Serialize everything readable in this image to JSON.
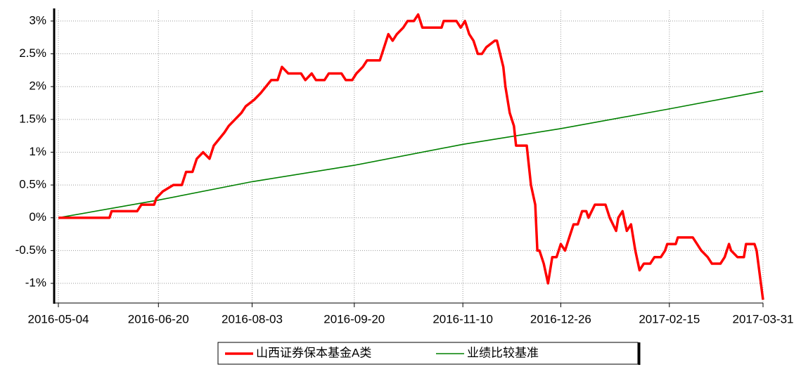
{
  "chart_data": {
    "type": "line",
    "xlim": [
      "2016-05-04",
      "2017-03-31"
    ],
    "xticks": [
      "2016-05-04",
      "2016-06-20",
      "2016-08-03",
      "2016-09-20",
      "2016-11-10",
      "2016-12-26",
      "2017-02-15",
      "2017-03-31"
    ],
    "ylim": [
      -1.3,
      3.16
    ],
    "yticks": [
      {
        "value": -1,
        "label": "-1%"
      },
      {
        "value": -0.5,
        "label": "-0.5%"
      },
      {
        "value": 0,
        "label": "0%"
      },
      {
        "value": 0.5,
        "label": "0.5%"
      },
      {
        "value": 1,
        "label": "1%"
      },
      {
        "value": 1.5,
        "label": "1.5%"
      },
      {
        "value": 2,
        "label": "2%"
      },
      {
        "value": 2.5,
        "label": "2.5%"
      },
      {
        "value": 3,
        "label": "3%"
      }
    ],
    "grid": true,
    "legend": "bottom",
    "series": [
      {
        "name": "山西证券保本基金A类",
        "color": "#ff0000",
        "x": [
          "2016-05-04",
          "2016-05-28",
          "2016-05-29",
          "2016-06-10",
          "2016-06-12",
          "2016-06-18",
          "2016-06-19",
          "2016-06-22",
          "2016-06-27",
          "2016-07-01",
          "2016-07-03",
          "2016-07-06",
          "2016-07-08",
          "2016-07-11",
          "2016-07-14",
          "2016-07-16",
          "2016-07-21",
          "2016-07-23",
          "2016-07-26",
          "2016-07-29",
          "2016-07-31",
          "2016-08-04",
          "2016-08-07",
          "2016-08-12",
          "2016-08-15",
          "2016-08-17",
          "2016-08-20",
          "2016-08-26",
          "2016-08-28",
          "2016-08-31",
          "2016-09-02",
          "2016-09-06",
          "2016-09-08",
          "2016-09-14",
          "2016-09-16",
          "2016-09-19",
          "2016-09-21",
          "2016-09-24",
          "2016-09-26",
          "2016-10-02",
          "2016-10-04",
          "2016-10-06",
          "2016-10-08",
          "2016-10-10",
          "2016-10-13",
          "2016-10-15",
          "2016-10-18",
          "2016-10-20",
          "2016-10-22",
          "2016-10-31",
          "2016-11-01",
          "2016-11-07",
          "2016-11-09",
          "2016-11-11",
          "2016-11-13",
          "2016-11-15",
          "2016-11-17",
          "2016-11-19",
          "2016-11-21",
          "2016-11-25",
          "2016-11-26",
          "2016-11-29",
          "2016-11-30",
          "2016-12-02",
          "2016-12-04",
          "2016-12-05",
          "2016-12-10",
          "2016-12-12",
          "2016-12-14",
          "2016-12-15",
          "2016-12-16",
          "2016-12-18",
          "2016-12-20",
          "2016-12-22",
          "2016-12-24",
          "2016-12-26",
          "2016-12-28",
          "2016-12-30",
          "2017-01-01",
          "2017-01-03",
          "2017-01-05",
          "2017-01-07",
          "2017-01-08",
          "2017-01-11",
          "2017-01-16",
          "2017-01-18",
          "2017-01-21",
          "2017-01-22",
          "2017-01-24",
          "2017-01-26",
          "2017-01-28",
          "2017-01-30",
          "2017-02-01",
          "2017-02-03",
          "2017-02-06",
          "2017-02-08",
          "2017-02-11",
          "2017-02-13",
          "2017-02-14",
          "2017-02-18",
          "2017-02-19",
          "2017-02-26",
          "2017-02-28",
          "2017-03-02",
          "2017-03-05",
          "2017-03-07",
          "2017-03-11",
          "2017-03-13",
          "2017-03-15",
          "2017-03-16",
          "2017-03-19",
          "2017-03-22",
          "2017-03-23",
          "2017-03-27",
          "2017-03-28",
          "2017-03-31"
        ],
        "values": [
          0,
          0,
          0.1,
          0.1,
          0.2,
          0.2,
          0.3,
          0.4,
          0.5,
          0.5,
          0.7,
          0.7,
          0.9,
          1.0,
          0.9,
          1.1,
          1.3,
          1.4,
          1.5,
          1.6,
          1.7,
          1.8,
          1.9,
          2.1,
          2.1,
          2.3,
          2.2,
          2.2,
          2.1,
          2.2,
          2.1,
          2.1,
          2.2,
          2.2,
          2.1,
          2.1,
          2.2,
          2.3,
          2.4,
          2.4,
          2.6,
          2.8,
          2.7,
          2.8,
          2.9,
          3.0,
          3.0,
          3.1,
          2.9,
          2.9,
          3.0,
          3.0,
          2.9,
          3.0,
          2.8,
          2.7,
          2.5,
          2.5,
          2.6,
          2.7,
          2.7,
          2.3,
          2.0,
          1.6,
          1.4,
          1.1,
          1.1,
          0.5,
          0.2,
          -0.5,
          -0.5,
          -0.7,
          -1.0,
          -0.6,
          -0.6,
          -0.4,
          -0.5,
          -0.3,
          -0.1,
          -0.1,
          0.1,
          0.1,
          0.0,
          0.2,
          0.2,
          0.0,
          -0.2,
          0.0,
          0.1,
          -0.2,
          -0.1,
          -0.5,
          -0.8,
          -0.7,
          -0.7,
          -0.6,
          -0.6,
          -0.5,
          -0.4,
          -0.4,
          -0.3,
          -0.3,
          -0.4,
          -0.5,
          -0.6,
          -0.7,
          -0.7,
          -0.6,
          -0.4,
          -0.5,
          -0.6,
          -0.6,
          -0.4,
          -0.4,
          -0.5,
          -1.25
        ]
      },
      {
        "name": "业绩比较基准",
        "color": "#008000",
        "x": [
          "2016-05-04",
          "2016-06-20",
          "2016-08-03",
          "2016-09-20",
          "2016-11-10",
          "2016-12-26",
          "2017-02-15",
          "2017-03-31"
        ],
        "values": [
          0,
          0.27,
          0.55,
          0.8,
          1.12,
          1.36,
          1.66,
          1.93
        ]
      }
    ]
  }
}
